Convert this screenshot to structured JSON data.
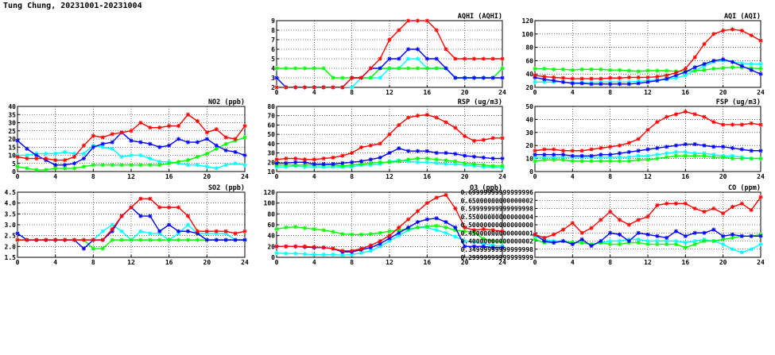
{
  "page": {
    "title": "Tung Chung, 20231001-20231004"
  },
  "colors": {
    "series1": "#ff0000",
    "series2": "#0000ff",
    "series3": "#00ff00",
    "series4": "#00ffff"
  },
  "chart_data": [
    {
      "id": "aqhi",
      "type": "line",
      "title": "AQHI (AQHI)",
      "xlim": [
        0,
        24
      ],
      "xticks": [
        0,
        4,
        8,
        12,
        16,
        20,
        24
      ],
      "ylim": [
        2,
        9
      ],
      "yticks": [
        2,
        3,
        4,
        5,
        6,
        7,
        8,
        9
      ],
      "grid": true,
      "series": [
        {
          "color": "#ff0000",
          "values": [
            2,
            2,
            2,
            2,
            2,
            2,
            2,
            2,
            3,
            3,
            4,
            5,
            7,
            8,
            9,
            9,
            9,
            8,
            6,
            5,
            5,
            5,
            5,
            5,
            5
          ]
        },
        {
          "color": "#0000ff",
          "values": [
            3,
            2,
            2,
            2,
            2,
            2,
            2,
            2,
            3,
            3,
            4,
            4,
            5,
            5,
            6,
            6,
            5,
            5,
            4,
            3,
            3,
            3,
            3,
            3,
            3
          ]
        },
        {
          "color": "#00ff00",
          "values": [
            4,
            4,
            4,
            4,
            4,
            4,
            3,
            3,
            3,
            3,
            3,
            4,
            4,
            4,
            4,
            4,
            4,
            4,
            4,
            3,
            3,
            3,
            3,
            3,
            4
          ]
        },
        {
          "color": "#00ffff",
          "values": [
            2,
            2,
            2,
            2,
            2,
            2,
            2,
            2,
            2,
            3,
            3,
            3,
            4,
            4,
            5,
            5,
            4,
            4,
            4,
            3,
            3,
            3,
            3,
            3,
            4
          ]
        }
      ]
    },
    {
      "id": "aqi",
      "type": "line",
      "title": "AQI (AQI)",
      "xlim": [
        0,
        24
      ],
      "xticks": [
        0,
        4,
        8,
        12,
        16,
        20,
        24
      ],
      "ylim": [
        20,
        120
      ],
      "yticks": [
        20,
        40,
        60,
        80,
        100,
        120
      ],
      "grid": true,
      "series": [
        {
          "color": "#ff0000",
          "values": [
            38,
            36,
            35,
            34,
            33,
            33,
            33,
            33,
            34,
            34,
            35,
            35,
            35,
            36,
            38,
            42,
            48,
            65,
            85,
            100,
            105,
            107,
            105,
            98,
            90
          ]
        },
        {
          "color": "#0000ff",
          "values": [
            35,
            32,
            30,
            28,
            26,
            26,
            25,
            25,
            25,
            25,
            25,
            26,
            28,
            30,
            33,
            38,
            43,
            50,
            55,
            60,
            62,
            58,
            52,
            46,
            40
          ]
        },
        {
          "color": "#00ff00",
          "values": [
            48,
            48,
            47,
            47,
            46,
            47,
            47,
            47,
            46,
            46,
            45,
            44,
            45,
            45,
            45,
            44,
            44,
            45,
            46,
            48,
            49,
            50,
            50,
            49,
            48
          ]
        },
        {
          "color": "#00ffff",
          "values": [
            28,
            28,
            28,
            28,
            27,
            27,
            27,
            28,
            28,
            28,
            28,
            29,
            30,
            31,
            32,
            34,
            38,
            45,
            52,
            58,
            60,
            58,
            56,
            55,
            55
          ]
        }
      ]
    },
    {
      "id": "no2",
      "type": "line",
      "title": "NO2 (ppb)",
      "xlim": [
        0,
        24
      ],
      "xticks": [
        0,
        4,
        8,
        12,
        16,
        20,
        24
      ],
      "ylim": [
        0,
        40
      ],
      "yticks": [
        0,
        5,
        10,
        15,
        20,
        25,
        30,
        35,
        40
      ],
      "grid": true,
      "series": [
        {
          "color": "#ff0000",
          "values": [
            9,
            8,
            8,
            8,
            7,
            7,
            9,
            16,
            22,
            21,
            23,
            24,
            25,
            30,
            27,
            27,
            28,
            28,
            35,
            31,
            24,
            26,
            21,
            20,
            28
          ]
        },
        {
          "color": "#0000ff",
          "values": [
            19,
            14,
            10,
            7,
            4,
            4,
            5,
            8,
            15,
            17,
            18,
            24,
            19,
            18,
            17,
            15,
            16,
            20,
            18,
            18,
            20,
            16,
            13,
            12,
            10
          ]
        },
        {
          "color": "#00ff00",
          "values": [
            3,
            2,
            1,
            1,
            2,
            2,
            2,
            3,
            4,
            4,
            4,
            4,
            4,
            4,
            4,
            4,
            5,
            6,
            7,
            9,
            11,
            14,
            17,
            19,
            21
          ]
        },
        {
          "color": "#00ffff",
          "values": [
            10,
            10,
            11,
            11,
            11,
            12,
            11,
            11,
            16,
            15,
            14,
            9,
            10,
            10,
            8,
            6,
            6,
            5,
            4,
            4,
            3,
            2,
            4,
            5,
            4
          ]
        }
      ]
    },
    {
      "id": "rsp",
      "type": "line",
      "title": "RSP (ug/m3)",
      "xlim": [
        0,
        24
      ],
      "xticks": [
        0,
        4,
        8,
        12,
        16,
        20,
        24
      ],
      "ylim": [
        10,
        80
      ],
      "yticks": [
        10,
        20,
        30,
        40,
        50,
        60,
        70,
        80
      ],
      "grid": true,
      "series": [
        {
          "color": "#ff0000",
          "values": [
            23,
            24,
            24,
            23,
            23,
            24,
            25,
            27,
            30,
            36,
            38,
            40,
            50,
            60,
            68,
            70,
            71,
            68,
            63,
            57,
            48,
            43,
            44,
            46,
            46
          ]
        },
        {
          "color": "#0000ff",
          "values": [
            19,
            19,
            20,
            20,
            18,
            18,
            18,
            19,
            20,
            21,
            23,
            25,
            30,
            35,
            32,
            32,
            32,
            30,
            30,
            29,
            27,
            26,
            25,
            24,
            24
          ]
        },
        {
          "color": "#00ff00",
          "values": [
            17,
            17,
            17,
            17,
            17,
            17,
            17,
            16,
            17,
            18,
            19,
            20,
            20,
            21,
            23,
            24,
            24,
            23,
            22,
            21,
            19,
            18,
            17,
            16,
            16
          ]
        },
        {
          "color": "#00ffff",
          "values": [
            15,
            15,
            16,
            15,
            15,
            15,
            15,
            15,
            15,
            17,
            17,
            18,
            21,
            22,
            21,
            20,
            20,
            19,
            18,
            18,
            17,
            16,
            15,
            15,
            14
          ]
        }
      ]
    },
    {
      "id": "fsp",
      "type": "line",
      "title": "FSP (ug/m3)",
      "xlim": [
        0,
        24
      ],
      "xticks": [
        0,
        4,
        8,
        12,
        16,
        20,
        24
      ],
      "ylim": [
        0,
        50
      ],
      "yticks": [
        0,
        10,
        20,
        30,
        40,
        50
      ],
      "grid": true,
      "series": [
        {
          "color": "#ff0000",
          "values": [
            16,
            17,
            17,
            16,
            16,
            16,
            17,
            18,
            19,
            20,
            22,
            25,
            32,
            38,
            42,
            44,
            46,
            44,
            42,
            38,
            36,
            36,
            36,
            37,
            36
          ]
        },
        {
          "color": "#0000ff",
          "values": [
            13,
            13,
            13,
            13,
            12,
            12,
            12,
            13,
            13,
            14,
            15,
            16,
            17,
            18,
            19,
            20,
            21,
            21,
            20,
            19,
            19,
            18,
            17,
            16,
            16
          ]
        },
        {
          "color": "#00ff00",
          "values": [
            8,
            9,
            9,
            9,
            8,
            8,
            8,
            8,
            8,
            8,
            8,
            9,
            9,
            10,
            11,
            12,
            12,
            12,
            12,
            11,
            11,
            10,
            10,
            10,
            10
          ]
        },
        {
          "color": "#00ffff",
          "values": [
            11,
            11,
            11,
            11,
            11,
            11,
            11,
            11,
            11,
            11,
            11,
            12,
            12,
            13,
            14,
            15,
            15,
            14,
            14,
            13,
            12,
            12,
            11,
            10,
            10
          ]
        }
      ]
    },
    {
      "id": "so2",
      "type": "line",
      "title": "SO2 (ppb)",
      "xlim": [
        0,
        24
      ],
      "xticks": [
        0,
        4,
        8,
        12,
        16,
        20,
        24
      ],
      "ylim": [
        1.5,
        4.5
      ],
      "yticks": [
        1.5,
        2.0,
        2.5,
        3.0,
        3.5,
        4.0,
        4.5
      ],
      "grid": true,
      "series": [
        {
          "color": "#ff0000",
          "values": [
            2.3,
            2.3,
            2.3,
            2.3,
            2.3,
            2.3,
            2.3,
            2.3,
            2.3,
            2.3,
            2.8,
            3.4,
            3.8,
            4.2,
            4.2,
            3.8,
            3.8,
            3.8,
            3.4,
            2.7,
            2.7,
            2.7,
            2.7,
            2.6,
            2.7
          ]
        },
        {
          "color": "#0000ff",
          "values": [
            2.6,
            2.3,
            2.3,
            2.3,
            2.3,
            2.3,
            2.3,
            1.9,
            2.3,
            2.3,
            2.7,
            3.4,
            3.8,
            3.4,
            3.4,
            2.7,
            3.0,
            2.7,
            2.7,
            2.6,
            2.3,
            2.3,
            2.3,
            2.3,
            2.3
          ]
        },
        {
          "color": "#00ff00",
          "values": [
            2.3,
            2.3,
            2.3,
            2.3,
            2.3,
            2.3,
            2.3,
            2.3,
            1.9,
            1.9,
            2.3,
            2.3,
            2.3,
            2.3,
            2.3,
            2.3,
            2.3,
            2.3,
            2.3,
            2.3,
            2.3,
            2.3,
            2.3,
            2.3,
            2.3
          ]
        },
        {
          "color": "#00ffff",
          "values": [
            2.3,
            2.3,
            2.3,
            2.3,
            2.3,
            2.3,
            2.3,
            2.3,
            2.3,
            2.7,
            3.0,
            2.7,
            2.3,
            2.7,
            2.6,
            2.6,
            2.3,
            2.6,
            3.0,
            2.6,
            2.6,
            2.6,
            2.6,
            2.3,
            2.3
          ]
        }
      ]
    },
    {
      "id": "o3",
      "type": "line",
      "title": "O3 (ppb)",
      "xlim": [
        0,
        24
      ],
      "xticks": [
        0,
        4,
        8,
        12,
        16,
        20,
        24
      ],
      "ylim": [
        0,
        120
      ],
      "yticks": [
        0,
        20,
        40,
        60,
        80,
        100,
        120
      ],
      "grid": true,
      "series": [
        {
          "color": "#ff0000",
          "values": [
            20,
            20,
            20,
            20,
            19,
            18,
            16,
            12,
            12,
            16,
            22,
            30,
            40,
            55,
            70,
            85,
            100,
            110,
            115,
            90,
            55,
            50,
            52,
            50,
            48
          ]
        },
        {
          "color": "#0000ff",
          "values": [
            20,
            20,
            20,
            19,
            18,
            18,
            16,
            10,
            10,
            14,
            18,
            25,
            35,
            45,
            55,
            65,
            70,
            72,
            65,
            55,
            20,
            20,
            20,
            18,
            18
          ]
        },
        {
          "color": "#00ff00",
          "values": [
            52,
            55,
            56,
            54,
            52,
            50,
            47,
            43,
            42,
            42,
            43,
            45,
            48,
            50,
            52,
            55,
            57,
            58,
            55,
            50,
            48,
            46,
            34,
            30,
            29
          ]
        },
        {
          "color": "#00ffff",
          "values": [
            8,
            7,
            7,
            6,
            5,
            5,
            5,
            4,
            5,
            8,
            12,
            20,
            30,
            40,
            50,
            55,
            55,
            50,
            45,
            38,
            30,
            28,
            25,
            22,
            20
          ]
        }
      ]
    },
    {
      "id": "co",
      "type": "line",
      "title": "CO (ppm)",
      "xlim": [
        0,
        24
      ],
      "xticks": [
        0,
        4,
        8,
        12,
        16,
        20,
        24
      ],
      "ylim": [
        0.3,
        0.7
      ],
      "yticks": [
        0.3,
        0.35,
        0.4,
        0.45,
        0.5,
        0.55,
        0.6,
        0.65,
        0.7
      ],
      "grid": true,
      "series": [
        {
          "color": "#ff0000",
          "values": [
            0.44,
            0.42,
            0.44,
            0.47,
            0.51,
            0.45,
            0.48,
            0.53,
            0.58,
            0.53,
            0.5,
            0.53,
            0.55,
            0.62,
            0.63,
            0.63,
            0.63,
            0.6,
            0.58,
            0.6,
            0.57,
            0.61,
            0.63,
            0.59,
            0.67
          ]
        },
        {
          "color": "#0000ff",
          "values": [
            0.44,
            0.4,
            0.39,
            0.4,
            0.38,
            0.41,
            0.37,
            0.4,
            0.45,
            0.44,
            0.4,
            0.45,
            0.44,
            0.43,
            0.42,
            0.46,
            0.43,
            0.45,
            0.45,
            0.47,
            0.43,
            0.44,
            0.43,
            0.43,
            0.43
          ]
        },
        {
          "color": "#00ff00",
          "values": [
            0.41,
            0.39,
            0.39,
            0.4,
            0.39,
            0.39,
            0.38,
            0.39,
            0.38,
            0.38,
            0.39,
            0.39,
            0.38,
            0.38,
            0.38,
            0.38,
            0.36,
            0.38,
            0.4,
            0.4,
            0.41,
            0.42,
            0.43,
            0.43,
            0.44
          ]
        },
        {
          "color": "#00ffff",
          "values": [
            0.43,
            0.41,
            0.4,
            0.4,
            0.39,
            0.39,
            0.38,
            0.39,
            0.4,
            0.4,
            0.41,
            0.41,
            0.4,
            0.4,
            0.4,
            0.4,
            0.39,
            0.4,
            0.41,
            0.4,
            0.38,
            0.35,
            0.33,
            0.35,
            0.38
          ]
        }
      ]
    }
  ]
}
